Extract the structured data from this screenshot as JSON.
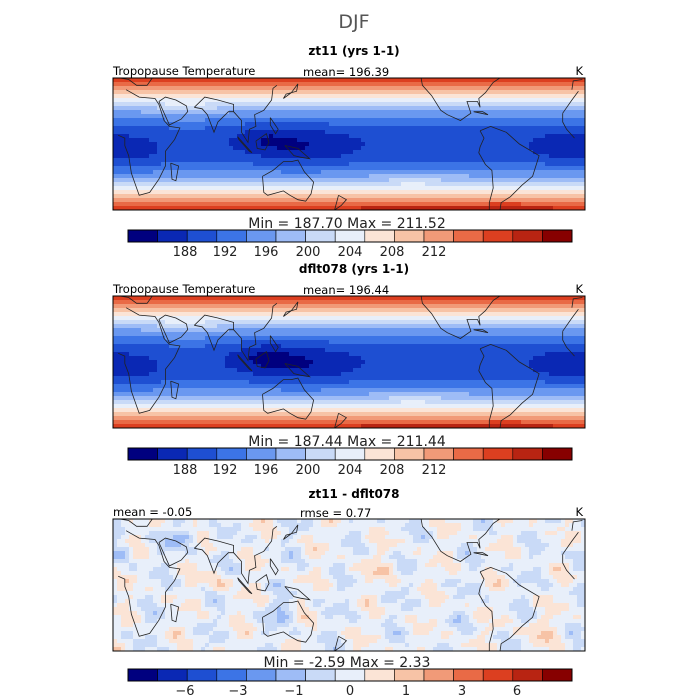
{
  "figure": {
    "title": "DJF"
  },
  "colors": {
    "bins": [
      "#00007f",
      "#0a28b4",
      "#1e4fd2",
      "#3c74e6",
      "#6a98f0",
      "#9ebcf6",
      "#c9daf7",
      "#e8effa",
      "#fbe4d6",
      "#f7c3a6",
      "#f19a78",
      "#e96a46",
      "#dc3f20",
      "#b82412",
      "#870000"
    ],
    "land_outline": "#222222",
    "frame": "#000000"
  },
  "chart_data": [
    {
      "type": "heatmap",
      "subtitle": "zt11 (yrs 1-1)",
      "field_label": "Tropopause Temperature",
      "stat_text": "mean= 196.39",
      "units": "K",
      "minmax_text": "Min = 187.70 Max = 211.52",
      "colorbar_ticks": [
        "188",
        "192",
        "196",
        "200",
        "204",
        "208",
        "212"
      ],
      "value_range": [
        186,
        214
      ],
      "axis_range": {
        "lon": [
          0,
          360
        ],
        "lat": [
          -45,
          45
        ]
      }
    },
    {
      "type": "heatmap",
      "subtitle": "dflt078 (yrs 1-1)",
      "field_label": "Tropopause Temperature",
      "stat_text": "mean= 196.44",
      "units": "K",
      "minmax_text": "Min = 187.44 Max = 211.44",
      "colorbar_ticks": [
        "188",
        "192",
        "196",
        "200",
        "204",
        "208",
        "212"
      ],
      "value_range": [
        186,
        214
      ],
      "axis_range": {
        "lon": [
          0,
          360
        ],
        "lat": [
          -45,
          45
        ]
      }
    },
    {
      "type": "heatmap",
      "subtitle": "zt11 - dflt078",
      "stat_text": "mean = -0.05",
      "stat_text_2": "rmse = 0.77",
      "units": "K",
      "minmax_text": "Min = -2.59 Max = 2.33",
      "colorbar_ticks": [
        "−6",
        "−3",
        "−1",
        "0",
        "1",
        "3",
        "6"
      ],
      "value_range": [
        -8,
        8
      ],
      "axis_range": {
        "lon": [
          0,
          360
        ],
        "lat": [
          -45,
          45
        ]
      }
    }
  ]
}
